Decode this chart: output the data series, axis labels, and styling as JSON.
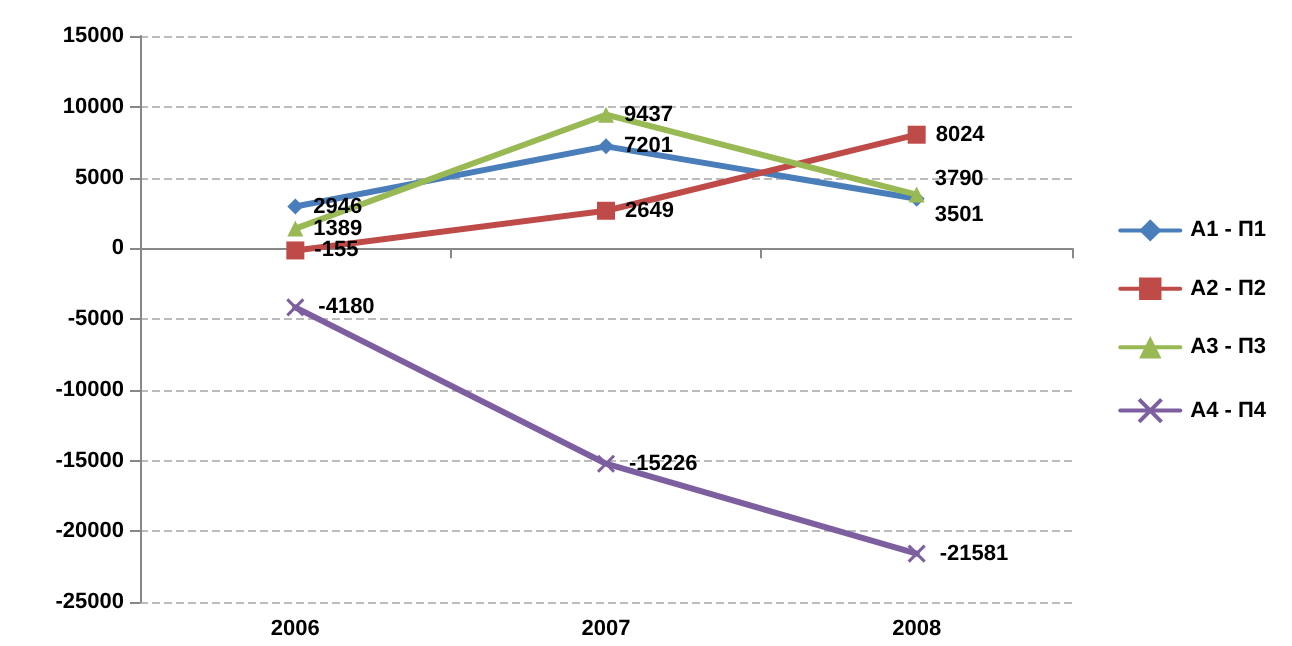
{
  "chart_data": {
    "type": "line",
    "categories": [
      "2006",
      "2007",
      "2008"
    ],
    "series": [
      {
        "name": "А1 - П1",
        "color": "#4a7ebb",
        "marker": "diamond",
        "values": [
          2946,
          7201,
          3501
        ]
      },
      {
        "name": "А2 - П2",
        "color": "#be4b48",
        "marker": "square",
        "values": [
          -155,
          2649,
          8024
        ]
      },
      {
        "name": "А3 - П3",
        "color": "#98b954",
        "marker": "triangle",
        "values": [
          1389,
          9437,
          3790
        ]
      },
      {
        "name": "А4 - П4",
        "color": "#7d5fa0",
        "marker": "cross",
        "values": [
          -4180,
          -15226,
          -21581
        ]
      }
    ],
    "ylim": [
      -25000,
      15000
    ],
    "yticks": [
      -25000,
      -20000,
      -15000,
      -10000,
      -5000,
      0,
      5000,
      10000,
      15000
    ],
    "grid": "y",
    "legend": "right",
    "data_labels": true
  }
}
